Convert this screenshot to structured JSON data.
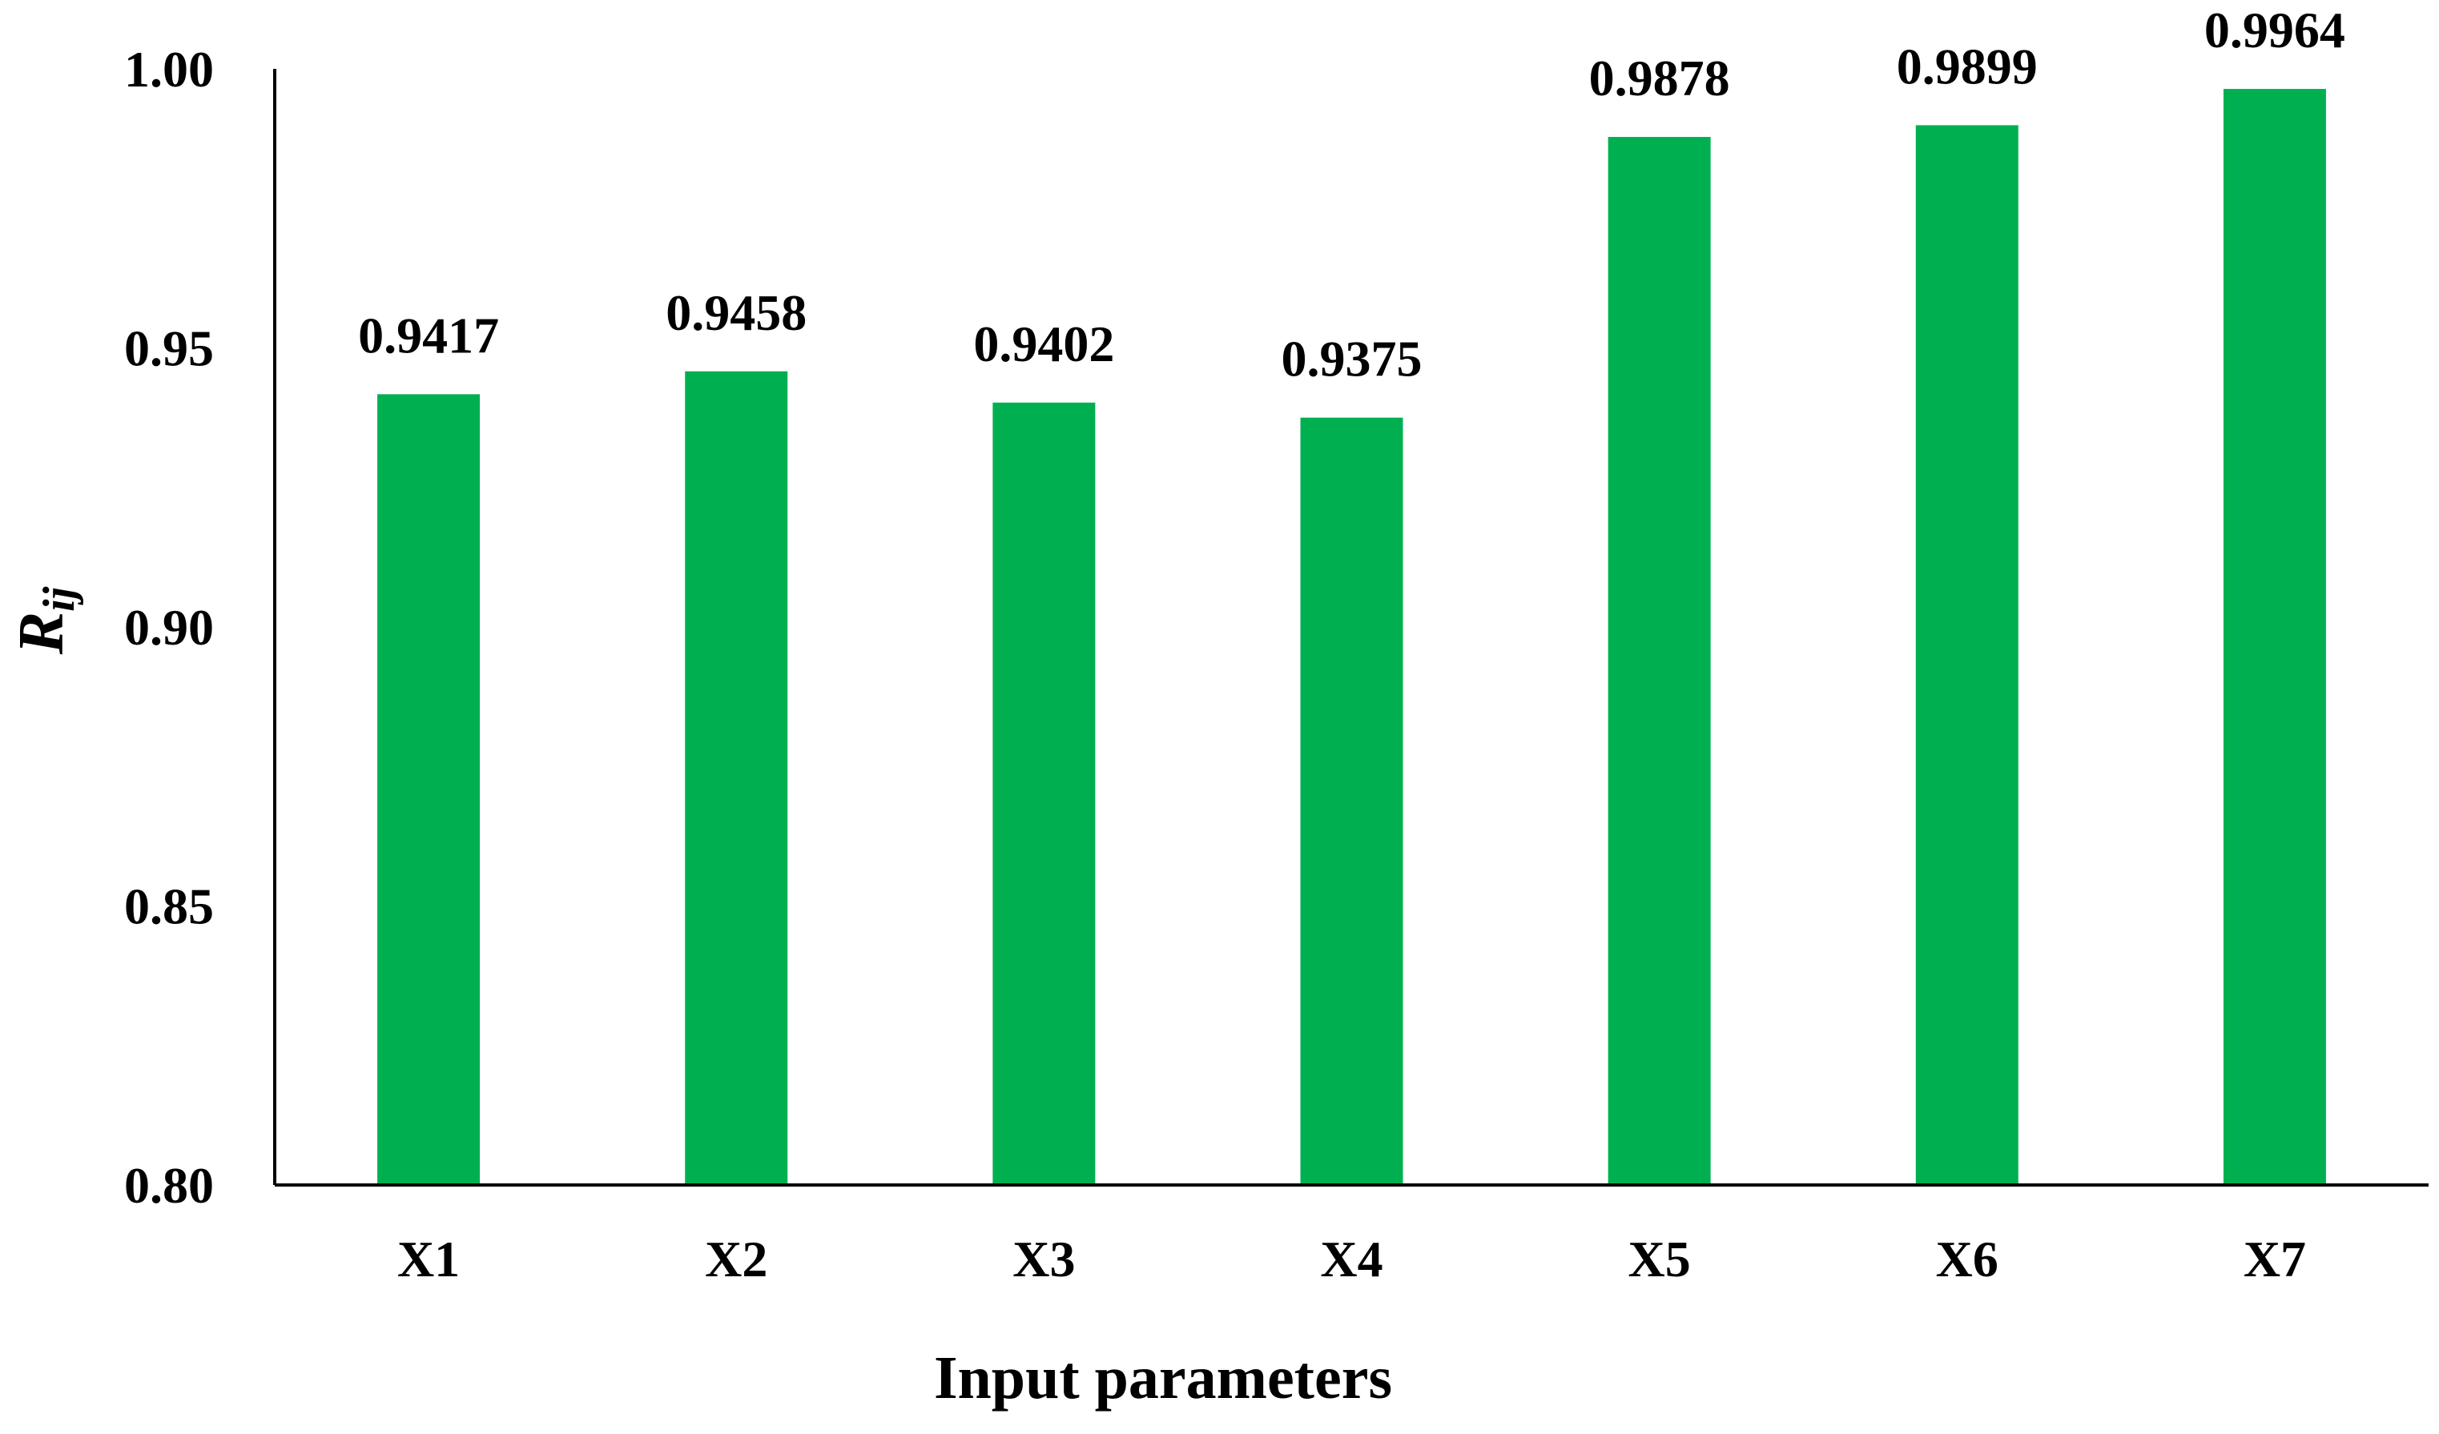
{
  "chart_data": {
    "type": "bar",
    "categories": [
      "X1",
      "X2",
      "X3",
      "X4",
      "X5",
      "X6",
      "X7"
    ],
    "values": [
      0.9417,
      0.9458,
      0.9402,
      0.9375,
      0.9878,
      0.9899,
      0.9964
    ],
    "data_labels": [
      "0.9417",
      "0.9458",
      "0.9402",
      "0.9375",
      "0.9878",
      "0.9899",
      "0.9964"
    ],
    "xlabel": "Input parameters",
    "ylabel": {
      "main": "R",
      "subscript": "ij"
    },
    "ylim": [
      0.8,
      1.0
    ],
    "yticks": [
      {
        "value": 0.8,
        "label": "0.80"
      },
      {
        "value": 0.85,
        "label": "0.85"
      },
      {
        "value": 0.9,
        "label": "0.90"
      },
      {
        "value": 0.95,
        "label": "0.95"
      },
      {
        "value": 1.0,
        "label": "1.00"
      }
    ],
    "grid": false,
    "legend": "none",
    "bar_color": "#00B050",
    "axis_color": "#000000"
  }
}
